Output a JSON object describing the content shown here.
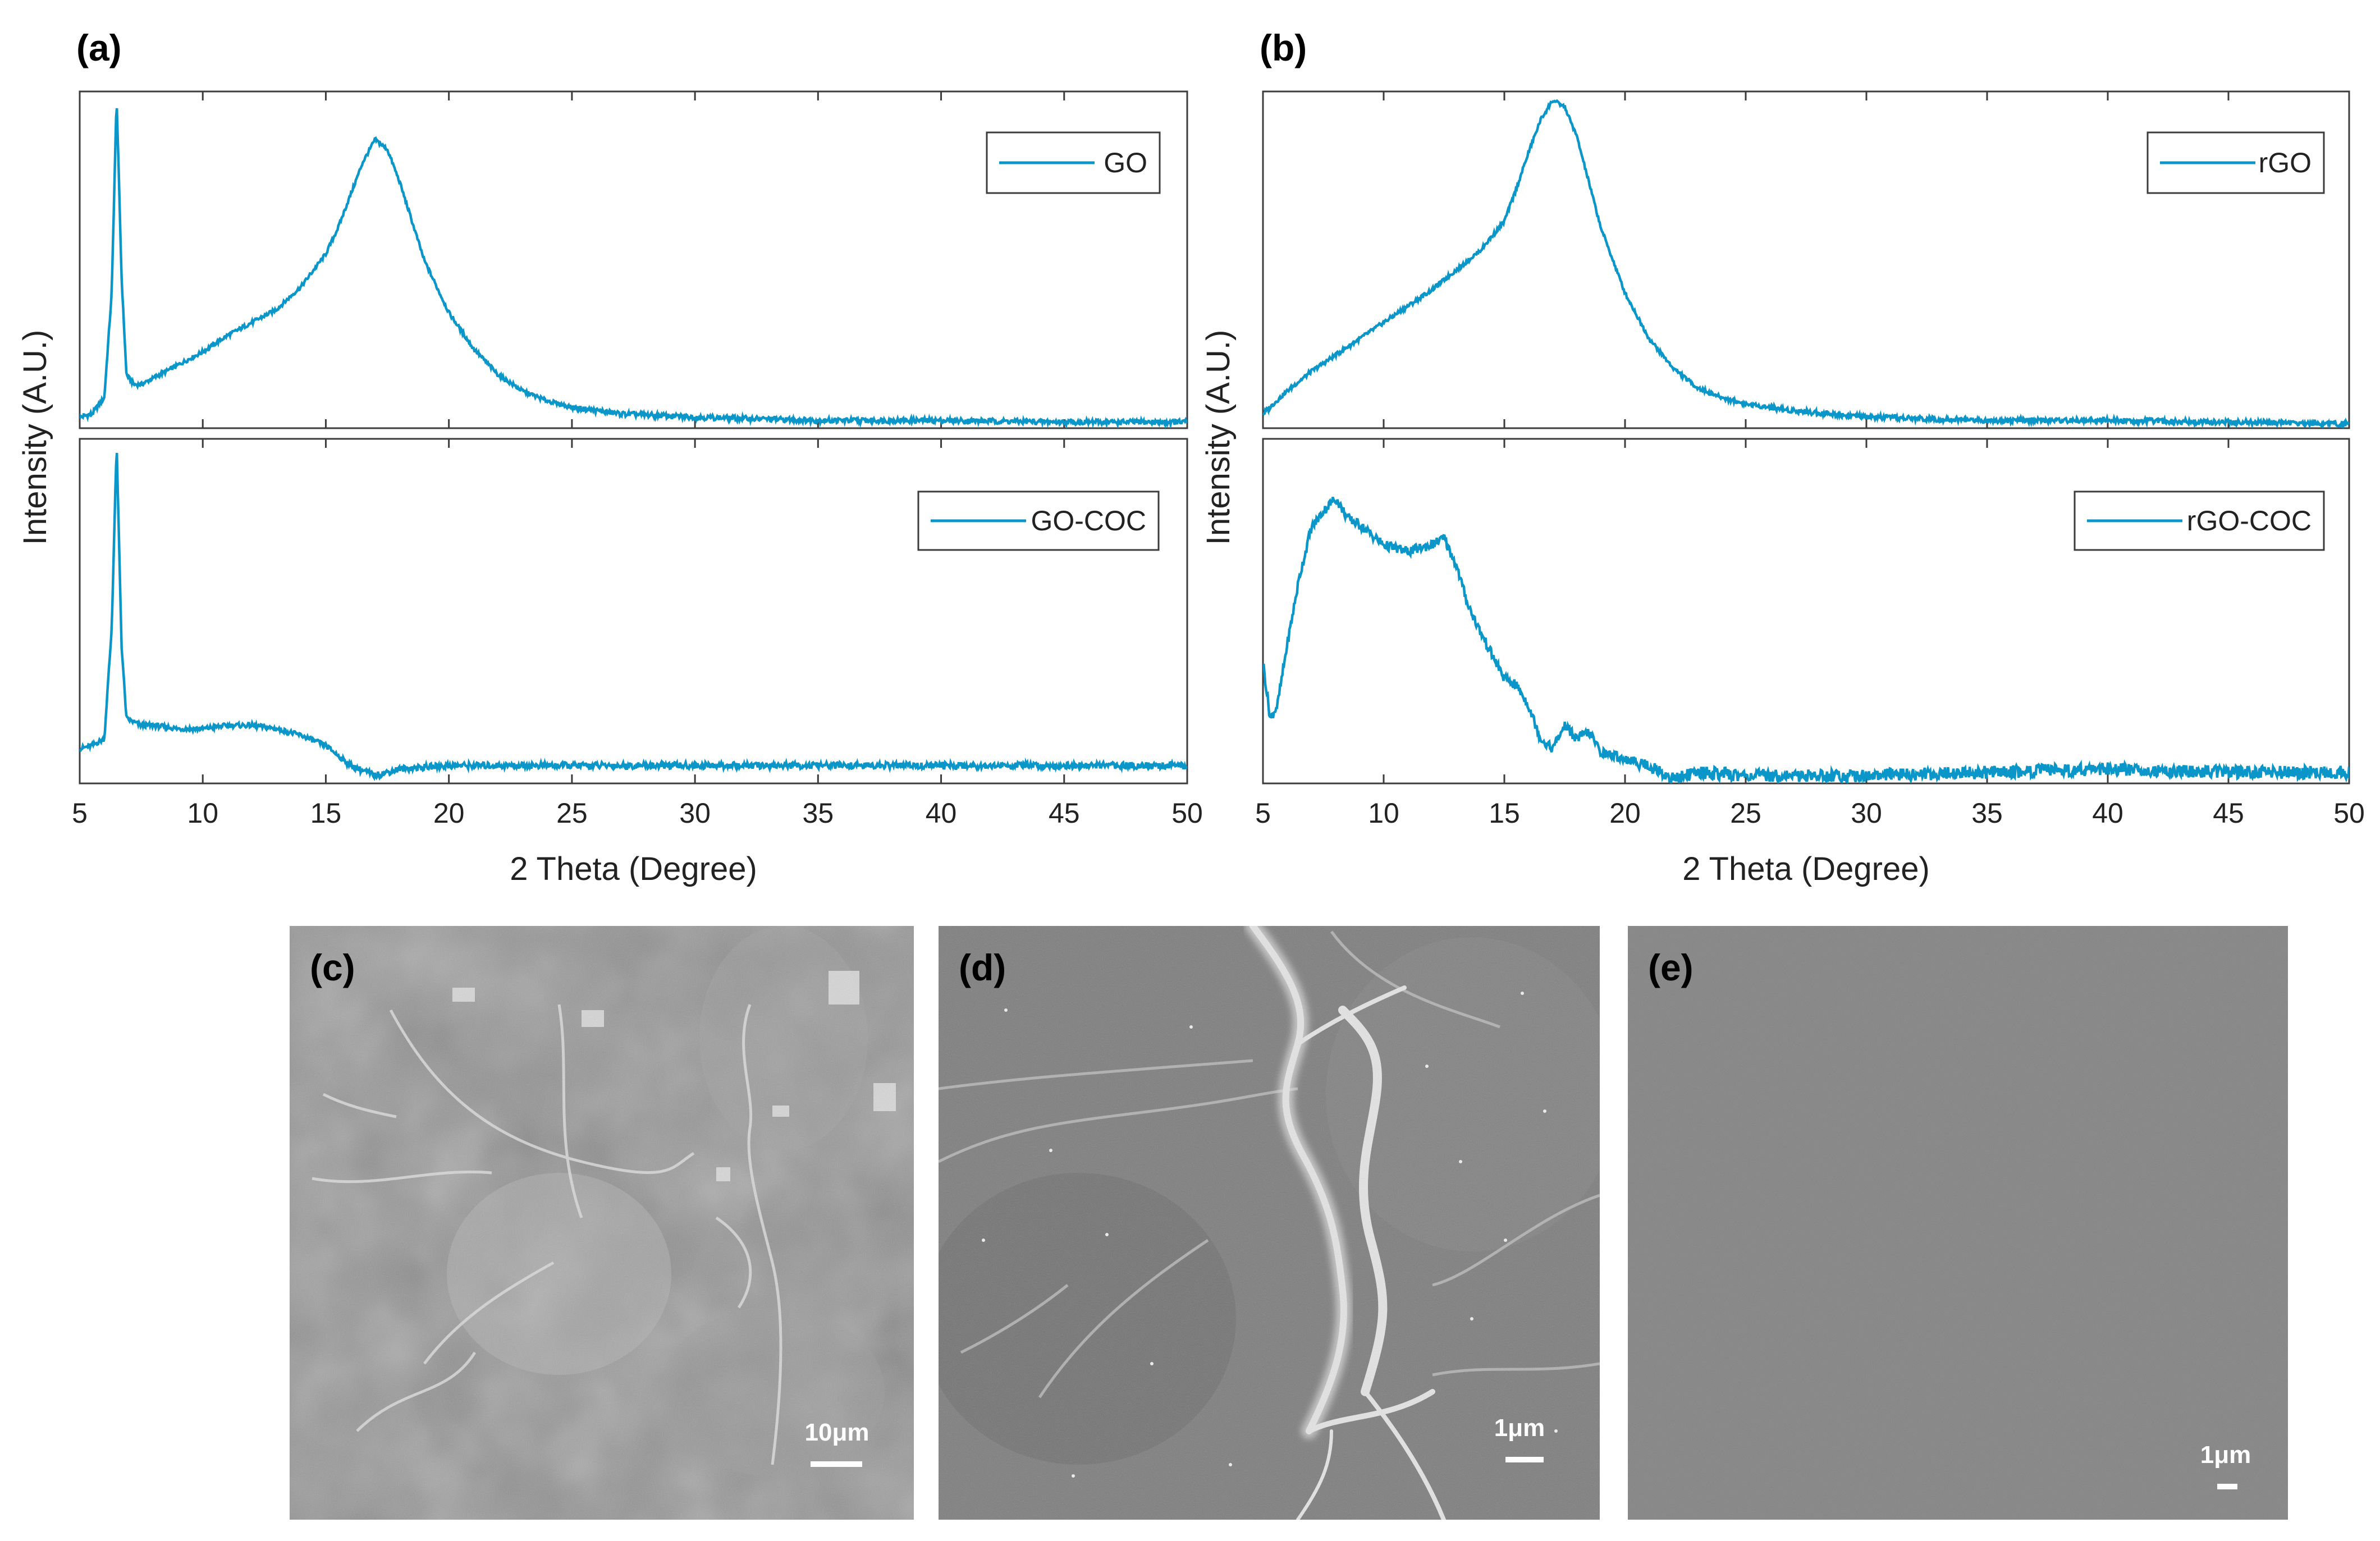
{
  "figure": {
    "panel_labels": {
      "a": "(a)",
      "b": "(b)",
      "c": "(c)",
      "d": "(d)",
      "e": "(e)"
    },
    "line_color": "#0a96c8"
  },
  "chart_data": [
    {
      "type": "line",
      "panel": "(a)",
      "xlabel": "2 Theta (Degree)",
      "ylabel": "Intensity (A.U.)",
      "xlim": [
        5,
        50
      ],
      "xticks": [
        "5",
        "10",
        "15",
        "20",
        "25",
        "30",
        "35",
        "40",
        "45",
        "50"
      ],
      "subplots": [
        {
          "legend": "GO",
          "ylim": [
            0,
            100
          ],
          "series": [
            {
              "name": "GO",
              "x": [
                5,
                5.5,
                6,
                6.3,
                6.5,
                6.7,
                6.9,
                7.2,
                7.5,
                8,
                9,
                10,
                11,
                12,
                13,
                14,
                15,
                15.5,
                16,
                16.5,
                17,
                17.5,
                18,
                18.5,
                19,
                20,
                21,
                22,
                23,
                24,
                25,
                27,
                30,
                35,
                40,
                45,
                50
              ],
              "y": [
                2,
                3,
                8,
                40,
                100,
                45,
                15,
                12,
                12,
                14,
                18,
                22,
                27,
                31,
                35,
                42,
                52,
                60,
                70,
                80,
                87,
                84,
                74,
                62,
                50,
                34,
                23,
                15,
                10,
                7,
                5,
                3,
                2,
                1,
                1,
                0.5,
                0.5
              ]
            }
          ]
        },
        {
          "legend": "GO-COC",
          "ylim": [
            0,
            100
          ],
          "series": [
            {
              "name": "GO-COC",
              "x": [
                5,
                5.5,
                6,
                6.3,
                6.5,
                6.7,
                6.9,
                7.2,
                7.5,
                8,
                9,
                10,
                11,
                12,
                13,
                14,
                15,
                15.5,
                16,
                17,
                18,
                20,
                25,
                30,
                35,
                40,
                45,
                50
              ],
              "y": [
                9,
                10,
                12,
                45,
                100,
                40,
                18,
                17,
                16,
                16,
                15,
                15,
                16,
                16,
                15,
                13,
                10,
                7,
                4,
                1,
                3,
                4,
                4,
                4,
                4,
                4,
                4,
                4
              ]
            }
          ]
        }
      ]
    },
    {
      "type": "line",
      "panel": "(b)",
      "xlabel": "2 Theta (Degree)",
      "ylabel": "Intensity (A.U.)",
      "xlim": [
        5,
        50
      ],
      "xticks": [
        "5",
        "10",
        "15",
        "20",
        "25",
        "30",
        "35",
        "40",
        "45",
        "50"
      ],
      "subplots": [
        {
          "legend": "rGO",
          "ylim": [
            0,
            100
          ],
          "series": [
            {
              "name": "rGO",
              "x": [
                5,
                6,
                7,
                8,
                9,
                10,
                11,
                12,
                13,
                14,
                15,
                15.5,
                16,
                16.5,
                17,
                17.5,
                18,
                18.5,
                19,
                20,
                21,
                22,
                23,
                24,
                25,
                27,
                30,
                35,
                40,
                45,
                50
              ],
              "y": [
                3,
                10,
                16,
                21,
                26,
                31,
                36,
                41,
                47,
                53,
                62,
                72,
                83,
                93,
                99,
                97,
                88,
                74,
                60,
                40,
                26,
                17,
                11,
                8,
                6,
                4,
                2,
                1,
                1,
                0.5,
                0
              ]
            }
          ]
        },
        {
          "legend": "rGO-COC",
          "ylim": [
            0,
            100
          ],
          "series": [
            {
              "name": "rGO-COC",
              "x": [
                5,
                5.3,
                5.6,
                6,
                6.5,
                7,
                7.5,
                8,
                8.5,
                9,
                10,
                11,
                12,
                12.5,
                13,
                13.5,
                14,
                15,
                15.5,
                16,
                16.5,
                17,
                17.5,
                18,
                18.5,
                19,
                20,
                21,
                21.5,
                22,
                23,
                25,
                30,
                35,
                40,
                45,
                50
              ],
              "y": [
                35,
                18,
                22,
                40,
                60,
                75,
                80,
                84,
                78,
                76,
                70,
                68,
                70,
                72,
                64,
                52,
                44,
                30,
                28,
                22,
                12,
                9,
                16,
                12,
                14,
                8,
                6,
                4,
                2,
                0,
                2,
                1,
                1,
                2,
                3,
                2,
                2
              ]
            }
          ]
        }
      ]
    }
  ],
  "micrographs": [
    {
      "label": "(c)",
      "scale_bar": "10μm"
    },
    {
      "label": "(d)",
      "scale_bar": "1μm"
    },
    {
      "label": "(e)",
      "scale_bar": "1μm"
    }
  ]
}
